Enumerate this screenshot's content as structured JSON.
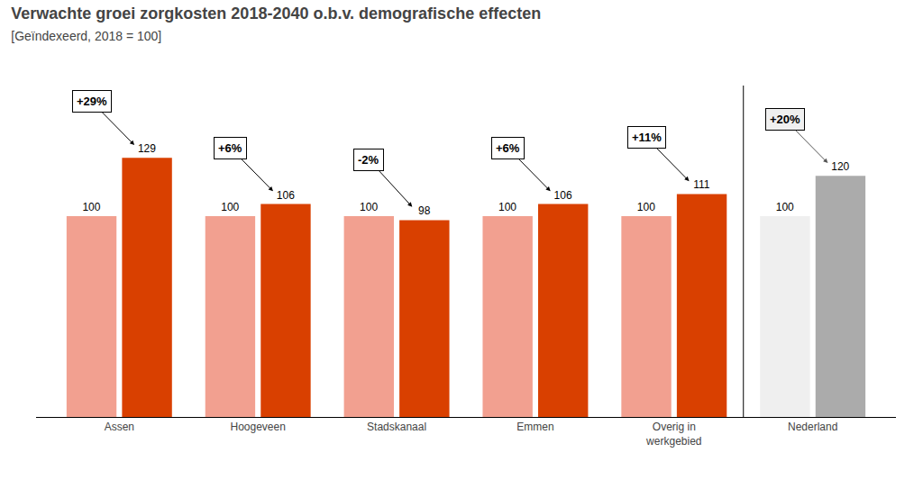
{
  "chart_data": {
    "type": "bar",
    "title": "Verwachte groei zorgkosten 2018-2040 o.b.v. demografische effecten",
    "subtitle": "[Geïndexeerd, 2018 = 100]",
    "categories": [
      "Assen",
      "Hoogeveen",
      "Stadskanaal",
      "Emmen",
      "Overig in\nwerkgebied",
      "Nederland"
    ],
    "series": [
      {
        "values": [
          100,
          100,
          100,
          100,
          100,
          100
        ],
        "colors": [
          "#F2A090",
          "#F2A090",
          "#F2A090",
          "#F2A090",
          "#F2A090",
          "#EFEFEF"
        ]
      },
      {
        "values": [
          129,
          106,
          98,
          106,
          111,
          120
        ],
        "colors": [
          "#D94000",
          "#D94000",
          "#D94000",
          "#D94000",
          "#D94000",
          "#ABABAB"
        ]
      }
    ],
    "annotations": [
      "+29%",
      "+6%",
      "-2%",
      "+6%",
      "+11%",
      "+20%"
    ],
    "ylim": [
      0,
      165
    ],
    "data_labels": true,
    "tick_labels": "x",
    "grid": false
  }
}
